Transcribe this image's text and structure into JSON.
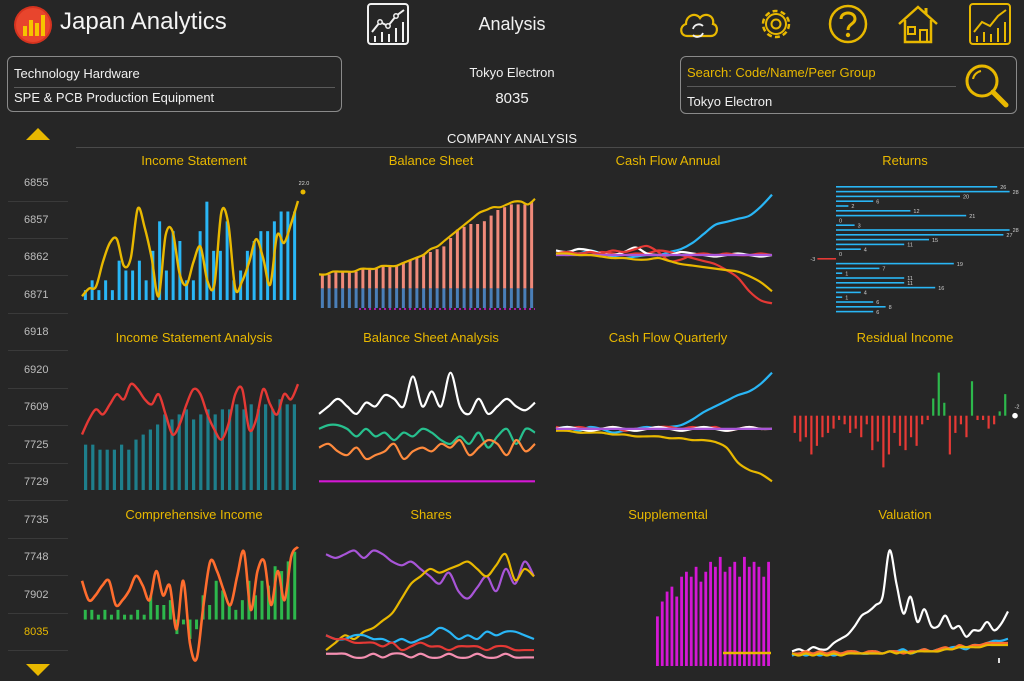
{
  "header": {
    "app_title": "Japan Analytics",
    "center_title": "Analysis",
    "icons": [
      "chart-icon",
      "cloud-sync-icon",
      "settings-gear-icon",
      "help-icon",
      "home-icon",
      "analysis-icon"
    ]
  },
  "category": {
    "sector": "Technology Hardware",
    "industry": "SPE & PCB Production Equipment"
  },
  "company": {
    "name": "Tokyo Electron",
    "code": "8035"
  },
  "search": {
    "placeholder": "Search: Code/Name/Peer Group",
    "value": "Tokyo Electron"
  },
  "code_list": {
    "items": [
      "6855",
      "6857",
      "6862",
      "6871",
      "6918",
      "6920",
      "7609",
      "7725",
      "7729",
      "7735",
      "7748",
      "7902",
      "8035"
    ],
    "selected": "8035"
  },
  "analysis": {
    "title": "COMPANY ANALYSIS",
    "panels": [
      "Income Statement",
      "Balance Sheet",
      "Cash Flow Annual",
      "Returns",
      "Income Statement Analysis",
      "Balance Sheet Analysis",
      "Cash Flow Quarterly",
      "Residual Income",
      "Comprehensive Income",
      "Shares",
      "Supplemental",
      "Valuation"
    ]
  },
  "colors": {
    "accent": "#e8b800",
    "background": "#262626",
    "blue": "#29b6f6",
    "red": "#e53935",
    "teal": "#1e7f8c",
    "green": "#2db84c",
    "orange": "#ff6d2e",
    "magenta": "#d417d4",
    "purple": "#a855d8",
    "white": "#ffffff",
    "salmon": "#f08a7a"
  },
  "chart_data": [
    {
      "type": "bar",
      "title": "Income Statement",
      "annotation": "22.0",
      "values": [
        1,
        2,
        1,
        2,
        1,
        4,
        3,
        3,
        4,
        2,
        5,
        8,
        3,
        7,
        6,
        2,
        2,
        7,
        10,
        5,
        5,
        8,
        2,
        3,
        5,
        6,
        7,
        7,
        8,
        9,
        9,
        9
      ],
      "line": [
        58,
        54,
        53,
        40,
        30,
        28,
        42,
        38,
        12,
        22,
        38,
        58,
        26,
        24,
        46,
        52,
        40,
        32,
        50,
        52,
        14,
        20,
        54,
        50,
        40,
        28,
        38,
        52,
        26,
        30,
        20,
        8
      ],
      "ylim": [
        0,
        12
      ]
    },
    {
      "type": "area",
      "title": "Balance Sheet",
      "values": [
        12,
        12,
        13,
        13,
        13,
        13,
        14,
        14,
        14,
        15,
        15,
        15,
        16,
        17,
        18,
        19,
        20,
        21,
        22,
        25,
        28,
        29,
        30,
        30,
        31,
        33,
        35,
        36,
        37,
        37,
        37,
        38
      ],
      "line": [
        12,
        12,
        13,
        13,
        13,
        13,
        14,
        14,
        14,
        15,
        15,
        15,
        16,
        17,
        18,
        19,
        21,
        22,
        24,
        26,
        28,
        30,
        32,
        34,
        35,
        36,
        36,
        37,
        38,
        38,
        37,
        39
      ],
      "ylim": [
        0,
        45
      ]
    },
    {
      "type": "line",
      "title": "Cash Flow Annual",
      "series": [
        {
          "values": [
            0,
            2,
            1,
            3,
            1,
            -1,
            -2,
            -1,
            0,
            0,
            2,
            4,
            8,
            14,
            20,
            22,
            24,
            26,
            32,
            40
          ]
        },
        {
          "values": [
            1,
            0,
            1,
            0,
            2,
            1,
            0,
            1,
            1,
            3,
            2,
            0,
            -2,
            -4,
            -6,
            -10,
            -15,
            -24,
            -30,
            -32
          ]
        },
        {
          "values": [
            3,
            2,
            4,
            3,
            1,
            0,
            2,
            5,
            1,
            0,
            0,
            2,
            1,
            0,
            -1,
            0,
            1,
            0,
            -1,
            0
          ]
        },
        {
          "values": [
            1,
            2,
            1,
            2,
            1,
            3,
            2,
            4,
            6,
            2,
            -4,
            -3,
            0,
            1,
            0,
            1,
            0,
            0,
            1,
            0
          ]
        },
        {
          "values": [
            0,
            0,
            0,
            0,
            0,
            0,
            0,
            0,
            0,
            0,
            0,
            0,
            0,
            0,
            0,
            0,
            0,
            0,
            0,
            0
          ]
        },
        {
          "values": [
            1,
            1,
            0,
            0,
            -1,
            -2,
            -2,
            -3,
            -3,
            -2,
            -4,
            -6,
            -7,
            -8,
            -9,
            -10,
            -11,
            -14,
            -18,
            -24
          ]
        }
      ]
    },
    {
      "type": "bar",
      "title": "Returns",
      "values": [
        26,
        28,
        20,
        6,
        2,
        12,
        21,
        0,
        3,
        28,
        27,
        15,
        11,
        4,
        0,
        -3,
        19,
        7,
        1,
        11,
        11,
        16,
        4,
        1,
        6,
        8,
        6
      ],
      "ylim": [
        -5,
        30
      ]
    },
    {
      "type": "bar",
      "title": "Income Statement Analysis",
      "values": [
        9,
        9,
        8,
        8,
        8,
        9,
        8,
        10,
        11,
        12,
        13,
        15,
        14,
        15,
        16,
        14,
        15,
        16,
        15,
        16,
        16,
        17,
        16,
        17,
        16,
        17,
        16,
        18,
        17,
        17
      ],
      "line": [
        11,
        14,
        16,
        15,
        17,
        19,
        18,
        21,
        20,
        18,
        17,
        19,
        15,
        11,
        13,
        17,
        20,
        19,
        15,
        12,
        10,
        13,
        19,
        20,
        12,
        14,
        20,
        17,
        15,
        19,
        18,
        21
      ],
      "ylim": [
        0,
        25
      ]
    },
    {
      "type": "line",
      "title": "Balance Sheet Analysis",
      "series": [
        {
          "values": [
            20,
            22,
            24,
            22,
            20,
            23,
            22,
            25,
            24,
            22,
            30,
            22,
            26,
            22,
            31,
            22,
            20,
            24,
            20,
            22,
            24,
            22,
            21,
            23
          ]
        },
        {
          "values": [
            16,
            17,
            17,
            16,
            14,
            16,
            14,
            15,
            13,
            15,
            14,
            16,
            15,
            13,
            12,
            14,
            12,
            15,
            11,
            14,
            16,
            12,
            16,
            15
          ]
        },
        {
          "values": [
            11,
            12,
            10,
            9,
            11,
            8,
            9,
            10,
            12,
            8,
            10,
            11,
            10,
            12,
            11,
            13,
            9,
            11,
            13,
            12,
            9,
            13,
            10,
            12
          ]
        },
        {
          "values": [
            2,
            2,
            2,
            2,
            2,
            2,
            2,
            2,
            2,
            2,
            2,
            2,
            2,
            2,
            2,
            2,
            2,
            2,
            2,
            2,
            2,
            2,
            2,
            2
          ]
        }
      ]
    },
    {
      "type": "line",
      "title": "Cash Flow Quarterly",
      "series": [
        {
          "values": [
            0,
            1,
            -1,
            1,
            0,
            -2,
            -1,
            0,
            1,
            0,
            1,
            2,
            5,
            9,
            12,
            15,
            18,
            20,
            24,
            30
          ]
        },
        {
          "values": [
            1,
            0,
            1,
            0,
            0,
            1,
            -1,
            0,
            0,
            1,
            1,
            0,
            1,
            0,
            1,
            -1,
            0,
            1,
            0,
            0
          ]
        },
        {
          "values": [
            -1,
            -1,
            -2,
            -2,
            -2,
            -3,
            -3,
            -4,
            -4,
            -4,
            -5,
            -5,
            -6,
            -6,
            -7,
            -10,
            -18,
            -22,
            -24,
            -28
          ]
        },
        {
          "values": [
            0,
            1,
            0,
            -1,
            0,
            1,
            0,
            -1,
            0,
            1,
            0,
            -1,
            0,
            1,
            0,
            -1,
            0,
            1,
            0,
            0
          ]
        },
        {
          "values": [
            0,
            0,
            0,
            0,
            0,
            0,
            0,
            0,
            0,
            0,
            0,
            0,
            0,
            0,
            0,
            0,
            0,
            0,
            0,
            0
          ]
        }
      ]
    },
    {
      "type": "bar",
      "title": "Residual Income",
      "annotation": "-2",
      "values": [
        -4,
        -6,
        -5,
        -9,
        -7,
        -5,
        -4,
        -3,
        -1,
        -2,
        -4,
        -3,
        -5,
        -2,
        -8,
        -6,
        -12,
        -9,
        -4,
        -7,
        -8,
        -5,
        -7,
        -2,
        -1,
        4,
        10,
        3,
        -9,
        -4,
        -2,
        -5,
        8,
        -1,
        -1,
        -3,
        -2,
        1,
        5
      ],
      "ylim": [
        -14,
        12
      ]
    },
    {
      "type": "bar",
      "title": "Comprehensive Income",
      "values": [
        2,
        2,
        1,
        2,
        1,
        2,
        1,
        1,
        2,
        1,
        5,
        3,
        3,
        4,
        -3,
        -1,
        -4,
        -2,
        5,
        3,
        8,
        6,
        3,
        2,
        4,
        8,
        5,
        8,
        7,
        11,
        10,
        12,
        14
      ],
      "line": [
        8,
        4,
        5,
        7,
        8,
        3,
        4,
        6,
        9,
        7,
        4,
        10,
        5,
        7,
        -2,
        8,
        -5,
        -8,
        3,
        12,
        10,
        6,
        3,
        9,
        14,
        2,
        10,
        12,
        3,
        10,
        4,
        13,
        15
      ],
      "ylim": [
        -10,
        16
      ]
    },
    {
      "type": "line",
      "title": "Shares",
      "series": [
        {
          "values": [
            26,
            25,
            26,
            27,
            25,
            27,
            26,
            24,
            23,
            24,
            22,
            20,
            18,
            21,
            16,
            14,
            17,
            20,
            16,
            22,
            18,
            24,
            20
          ]
        },
        {
          "values": [
            0,
            2,
            4,
            3,
            5,
            6,
            8,
            10,
            14,
            18,
            20,
            22,
            21,
            22,
            23,
            24,
            22,
            20,
            23,
            26,
            19,
            22,
            20
          ]
        },
        {
          "values": [
            4,
            3,
            3,
            4,
            4,
            3,
            3,
            2,
            3,
            2,
            3,
            4,
            6,
            5,
            3,
            4,
            3,
            5,
            4,
            5,
            5,
            4,
            3
          ]
        },
        {
          "values": [
            4,
            3,
            3,
            2,
            2,
            2,
            1,
            2,
            0,
            1,
            2,
            1,
            1,
            0,
            1,
            1,
            1,
            0,
            1,
            1,
            0,
            0,
            0
          ]
        },
        {
          "values": [
            -1,
            -1,
            -1,
            -2,
            -2,
            -1,
            -2,
            -1,
            -1,
            -2,
            -1,
            -2,
            -2,
            -1,
            -2,
            -2,
            -1,
            -2,
            -2,
            -1,
            -2,
            -2,
            -2
          ]
        }
      ]
    },
    {
      "type": "bar",
      "title": "Supplemental",
      "values": [
        10,
        13,
        15,
        16,
        14,
        18,
        19,
        18,
        20,
        17,
        19,
        21,
        20,
        22,
        19,
        20,
        21,
        18,
        22,
        20,
        21,
        20,
        18,
        21
      ],
      "line": [
        1,
        1,
        1,
        1,
        1,
        1,
        1,
        1,
        1
      ],
      "ylim": [
        0,
        25
      ]
    },
    {
      "type": "line",
      "title": "Valuation",
      "series": [
        {
          "values": [
            2,
            3,
            2,
            4,
            3,
            3,
            6,
            8,
            10,
            14,
            19,
            21,
            24,
            28,
            50,
            34,
            20,
            28,
            16,
            22,
            14,
            14,
            19,
            13,
            14,
            9,
            12,
            12,
            16,
            12,
            15,
            21
          ]
        },
        {
          "values": [
            0,
            1,
            0,
            1,
            0,
            1,
            0,
            1,
            1,
            2,
            1,
            1,
            2,
            1,
            2,
            2,
            3,
            1,
            2,
            3,
            2,
            3,
            3,
            4,
            4,
            3,
            5,
            5,
            6,
            7,
            7,
            8
          ]
        },
        {
          "values": [
            1,
            1,
            2,
            1,
            2,
            1,
            2,
            1,
            2,
            2,
            1,
            2,
            2,
            1,
            2,
            2,
            1,
            2,
            2,
            3,
            2,
            3,
            4,
            3,
            5,
            4,
            5,
            5,
            6,
            6,
            6,
            6
          ]
        },
        {
          "values": [
            1,
            0,
            1,
            0,
            1,
            0,
            1,
            0,
            1,
            1,
            1,
            1,
            1,
            1,
            2,
            1,
            2,
            1,
            2,
            2,
            2,
            2,
            3,
            3,
            4,
            4,
            4,
            4,
            5,
            5,
            5,
            5
          ]
        }
      ]
    }
  ]
}
